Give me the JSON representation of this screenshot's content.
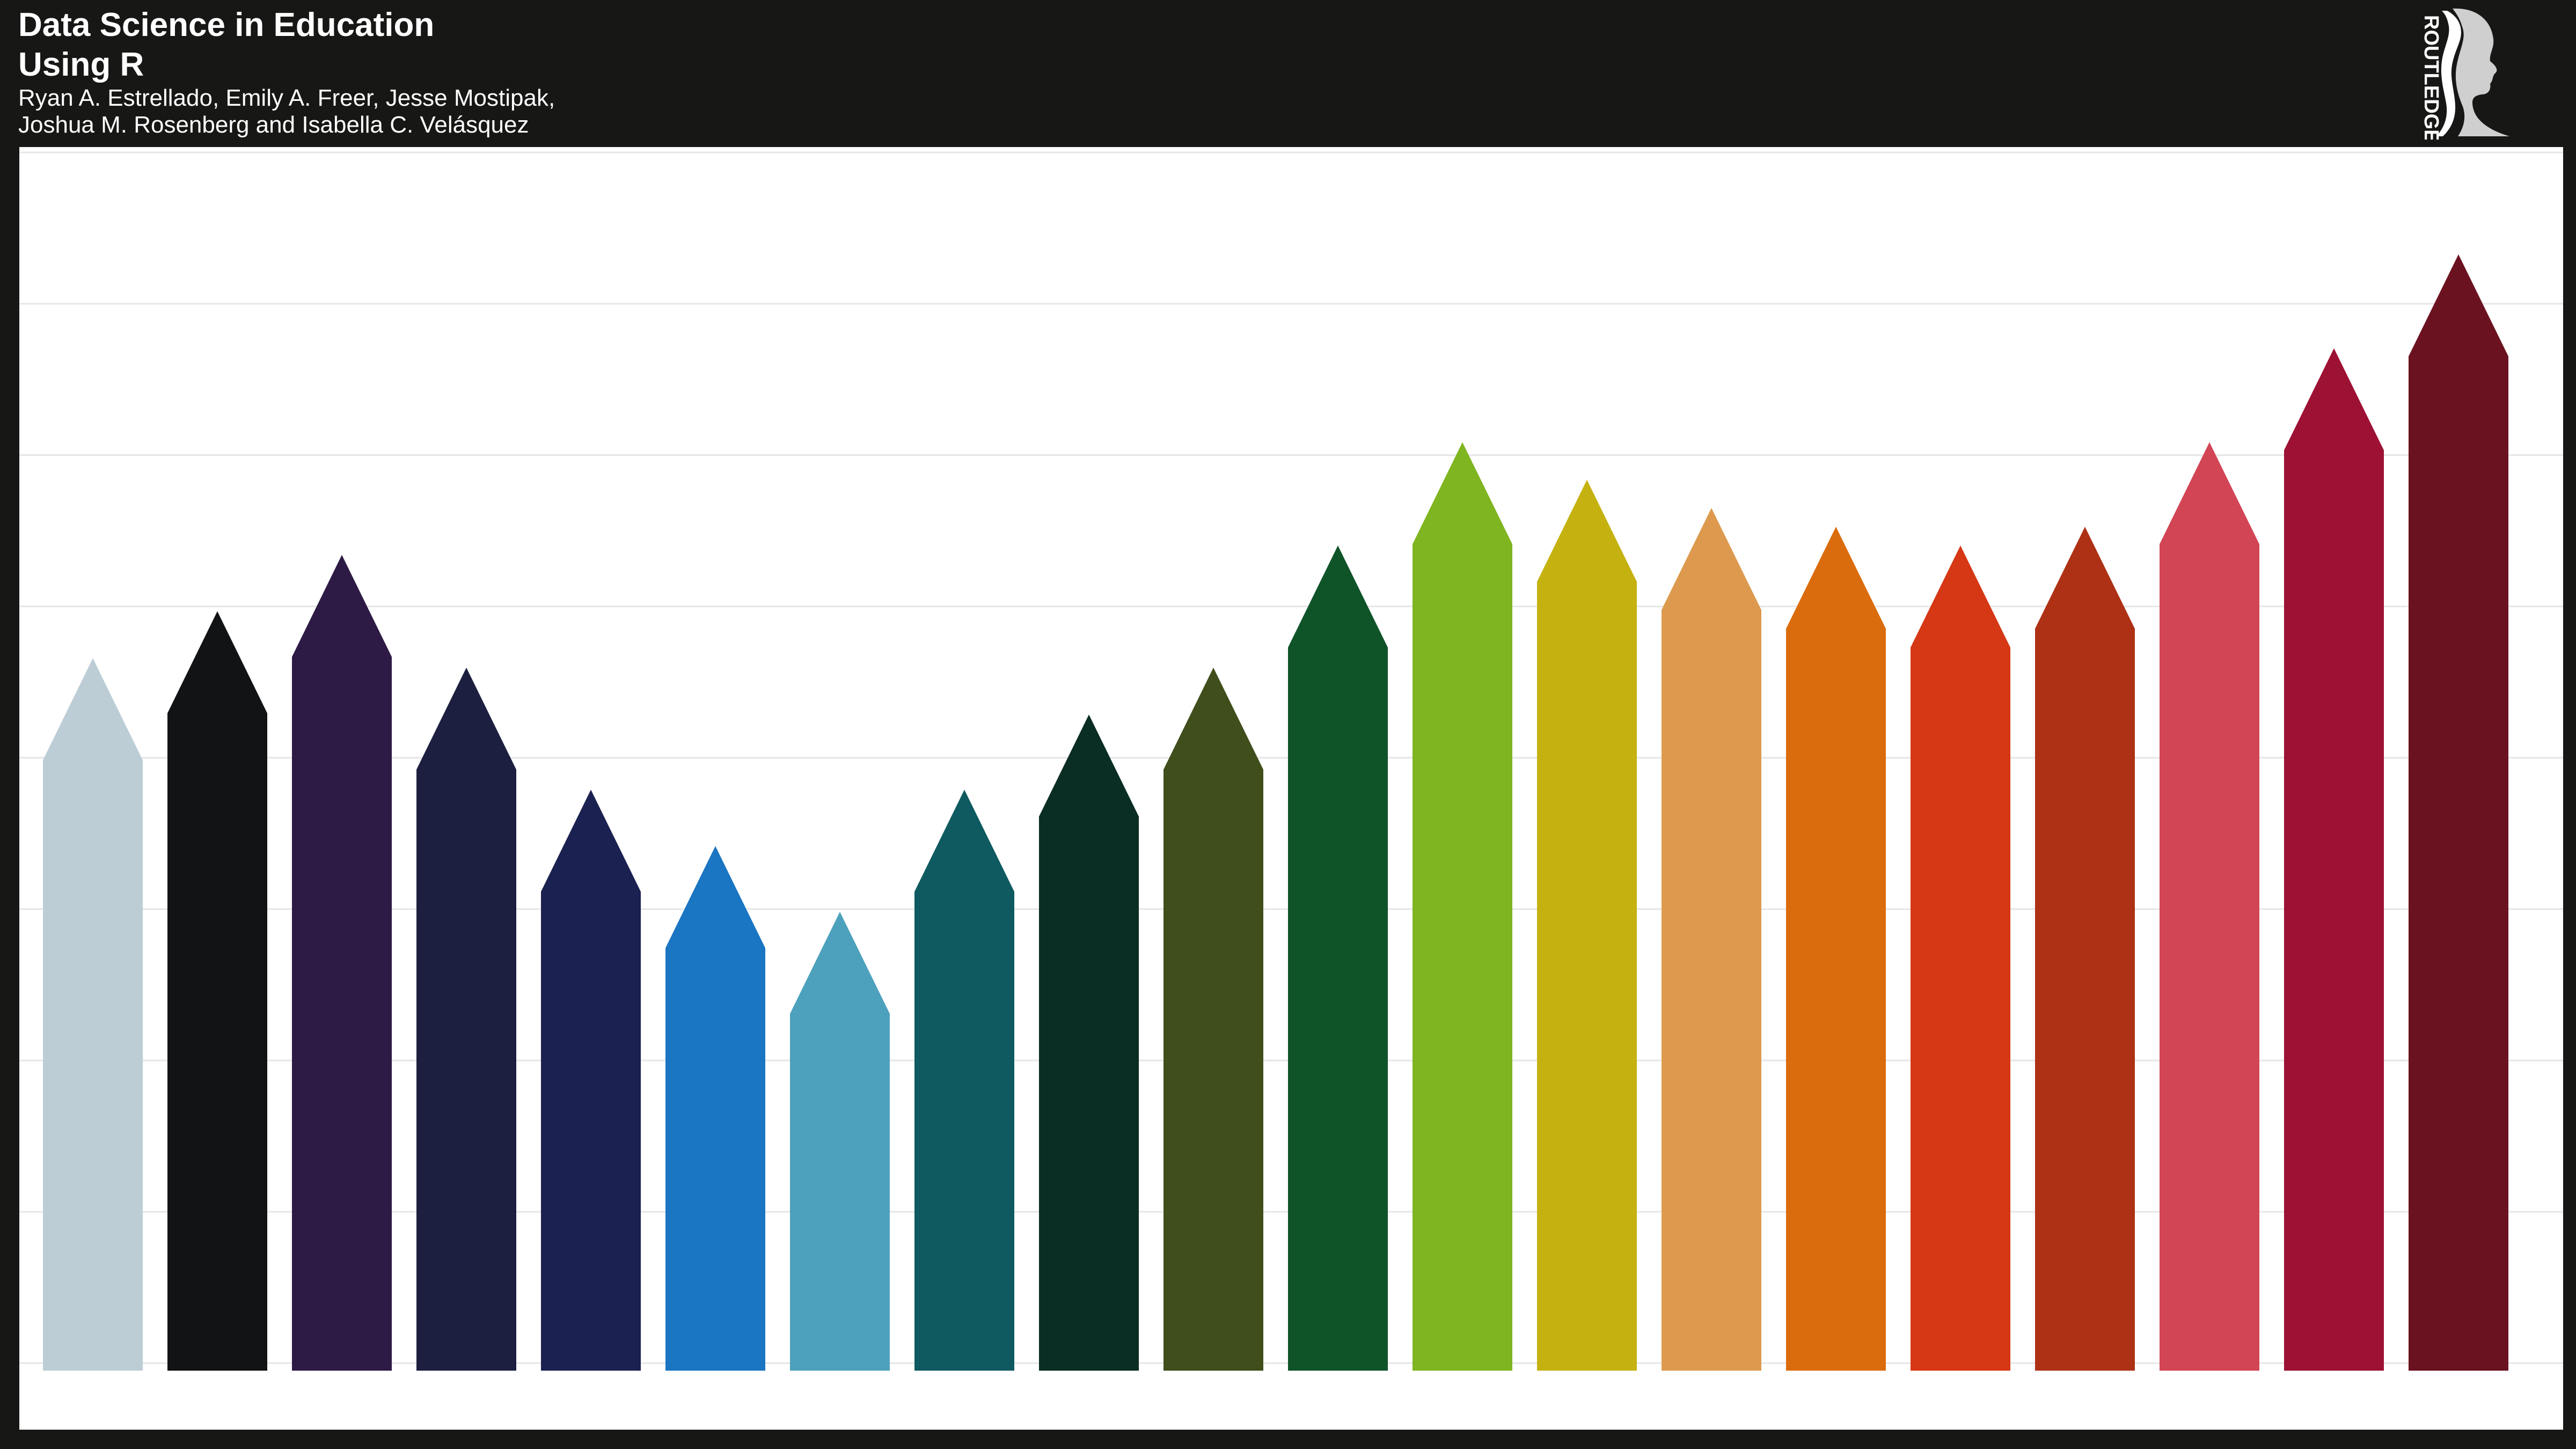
{
  "cover": {
    "title_line1": "Data Science in Education",
    "title_line2": "Using R",
    "authors_line1": "Ryan A. Estrellado, Emily A. Freer, Jesse Mostipak,",
    "authors_line2": "Joshua M. Rosenberg and Isabella C. Velásquez",
    "publisher_logo_text": "ROUTLEDGE",
    "background_color": "#171716",
    "panel_color": "#ffffff",
    "gridline_color": "#e6e6e6"
  },
  "pencils": [
    {
      "color": "#bccdd6",
      "level": 0.65
    },
    {
      "color": "#111314",
      "level": 0.7
    },
    {
      "color": "#2d1b45",
      "level": 0.76
    },
    {
      "color": "#1c1f40",
      "level": 0.64
    },
    {
      "color": "#1b2150",
      "level": 0.51
    },
    {
      "color": "#1a75c2",
      "level": 0.45
    },
    {
      "color": "#4da1bd",
      "level": 0.38
    },
    {
      "color": "#0e5a60",
      "level": 0.51
    },
    {
      "color": "#0a2d24",
      "level": 0.59
    },
    {
      "color": "#3f4e1b",
      "level": 0.64
    },
    {
      "color": "#0f5429",
      "level": 0.77
    },
    {
      "color": "#7fb520",
      "level": 0.88
    },
    {
      "color": "#c5b210",
      "level": 0.84
    },
    {
      "color": "#dd9a4e",
      "level": 0.81
    },
    {
      "color": "#db6c0e",
      "level": 0.79
    },
    {
      "color": "#d63715",
      "level": 0.77
    },
    {
      "color": "#ae3115",
      "level": 0.79
    },
    {
      "color": "#d24555",
      "level": 0.88
    },
    {
      "color": "#9d1134",
      "level": 0.98
    },
    {
      "color": "#6b1220",
      "level": 1.08
    }
  ]
}
